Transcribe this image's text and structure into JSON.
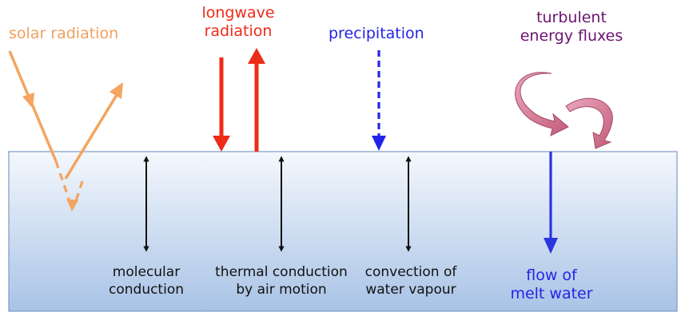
{
  "labels": {
    "solar_radiation": "solar radiation",
    "longwave_line1": "longwave",
    "longwave_line2": "radiation",
    "precipitation": "precipitation",
    "turbulent_line1": "turbulent",
    "turbulent_line2": "energy fluxes",
    "molecular_line1": "molecular",
    "molecular_line2": "conduction",
    "thermal_line1": "thermal conduction",
    "thermal_line2": "by air motion",
    "convection_line1": "convection of",
    "convection_line2": "water vapour",
    "flow_line1": "flow of",
    "flow_line2": "melt water"
  },
  "colors": {
    "solar": "#f4a45e",
    "longwave": "#ee2a18",
    "precipitation": "#2424e8",
    "turbulent": "#cf6f88",
    "transfer": "#111111",
    "meltwater": "#2a35e0",
    "medium_top": "#f4f8fd",
    "medium_bottom": "#a9c3e6"
  }
}
